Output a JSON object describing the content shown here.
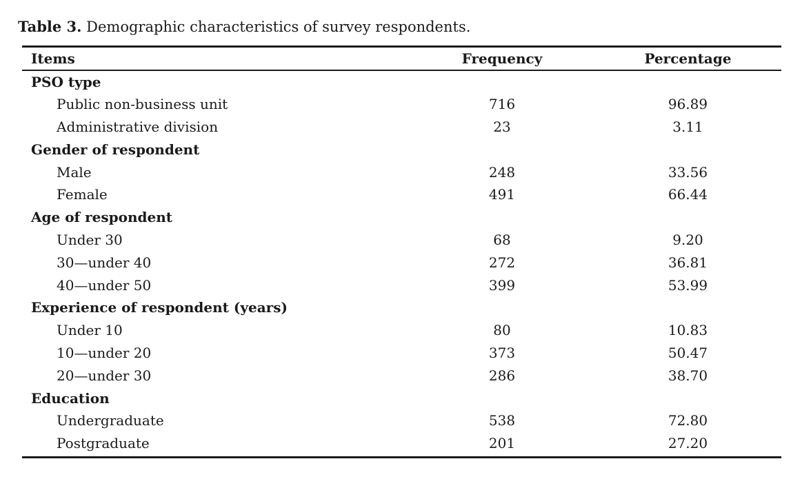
{
  "caption": {
    "label": "Table 3.",
    "text": " Demographic characteristics of survey respondents."
  },
  "table": {
    "headers": [
      "Items",
      "Frequency",
      "Percentage"
    ],
    "groups": [
      {
        "title": "PSO type",
        "rows": [
          {
            "item": "Public non-business unit",
            "frequency": "716",
            "percentage": "96.89"
          },
          {
            "item": "Administrative division",
            "frequency": "23",
            "percentage": "3.11"
          }
        ]
      },
      {
        "title": "Gender of respondent",
        "rows": [
          {
            "item": "Male",
            "frequency": "248",
            "percentage": "33.56"
          },
          {
            "item": "Female",
            "frequency": "491",
            "percentage": "66.44"
          }
        ]
      },
      {
        "title": "Age of respondent",
        "rows": [
          {
            "item": "Under 30",
            "frequency": "68",
            "percentage": "9.20"
          },
          {
            "item": "30—under 40",
            "frequency": "272",
            "percentage": "36.81"
          },
          {
            "item": "40—under 50",
            "frequency": "399",
            "percentage": "53.99"
          }
        ]
      },
      {
        "title": "Experience of respondent (years)",
        "rows": [
          {
            "item": "Under 10",
            "frequency": "80",
            "percentage": "10.83"
          },
          {
            "item": "10—under 20",
            "frequency": "373",
            "percentage": "50.47"
          },
          {
            "item": "20—under 30",
            "frequency": "286",
            "percentage": "38.70"
          }
        ]
      },
      {
        "title": "Education",
        "rows": [
          {
            "item": "Undergraduate",
            "frequency": "538",
            "percentage": "72.80"
          },
          {
            "item": "Postgraduate",
            "frequency": "201",
            "percentage": "27.20"
          }
        ]
      }
    ]
  }
}
